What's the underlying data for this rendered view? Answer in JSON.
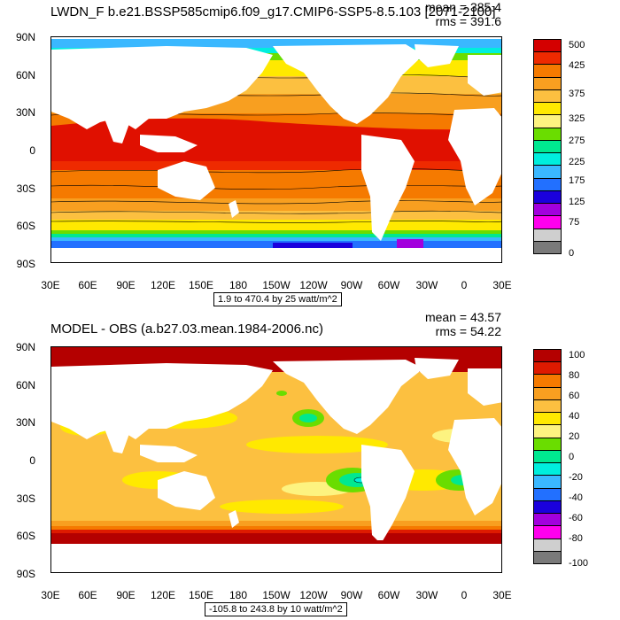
{
  "panels": [
    {
      "id": "top",
      "title": "LWDN_F b.e21.BSSP585cmip6.f09_g17.CMIP6-SSP5-8.5.103 [2071-2100]",
      "mean": "mean = 385.4",
      "rms": "rms = 391.6",
      "range_text": "1.9 to 470.4 by 25 watt/m^2",
      "lat_labels": [
        "90N",
        "60N",
        "30N",
        "0",
        "30S",
        "60S",
        "90S"
      ],
      "lon_labels": [
        "30E",
        "60E",
        "90E",
        "120E",
        "150E",
        "180",
        "150W",
        "120W",
        "90W",
        "60W",
        "30W",
        "0",
        "30E"
      ],
      "colorbar_labels": [
        "500",
        "425",
        "375",
        "325",
        "275",
        "225",
        "175",
        "125",
        "75",
        "0"
      ],
      "colorbar_colors": [
        "#d40000",
        "#ee2a00",
        "#f57a00",
        "#f89f20",
        "#fcc040",
        "#ffe900",
        "#fdf380",
        "#6add00",
        "#00e890",
        "#00eedd",
        "#3ab8ff",
        "#2270ff",
        "#1a00dd",
        "#a200dd",
        "#ff00ee",
        "#cfcfcf",
        "#7a7a7a"
      ]
    },
    {
      "id": "bottom",
      "title": "MODEL - OBS (a.b27.03.mean.1984-2006.nc)",
      "mean": "mean = 43.57",
      "rms": "rms = 54.22",
      "range_text": "-105.8 to 243.8 by 10 watt/m^2",
      "lat_labels": [
        "90N",
        "60N",
        "30N",
        "0",
        "30S",
        "60S",
        "90S"
      ],
      "lon_labels": [
        "30E",
        "60E",
        "90E",
        "120E",
        "150E",
        "180",
        "150W",
        "120W",
        "90W",
        "60W",
        "30W",
        "0",
        "30E"
      ],
      "colorbar_labels": [
        "100",
        "80",
        "60",
        "40",
        "20",
        "0",
        "-20",
        "-40",
        "-60",
        "-80",
        "-100"
      ],
      "colorbar_colors": [
        "#b40000",
        "#de1a00",
        "#f57a00",
        "#f89f20",
        "#fcc040",
        "#ffe900",
        "#fdf380",
        "#6add00",
        "#00e890",
        "#00eedd",
        "#3ab8ff",
        "#2270ff",
        "#1a00dd",
        "#a200dd",
        "#ff00ee",
        "#cfcfcf",
        "#7a7a7a"
      ]
    }
  ]
}
